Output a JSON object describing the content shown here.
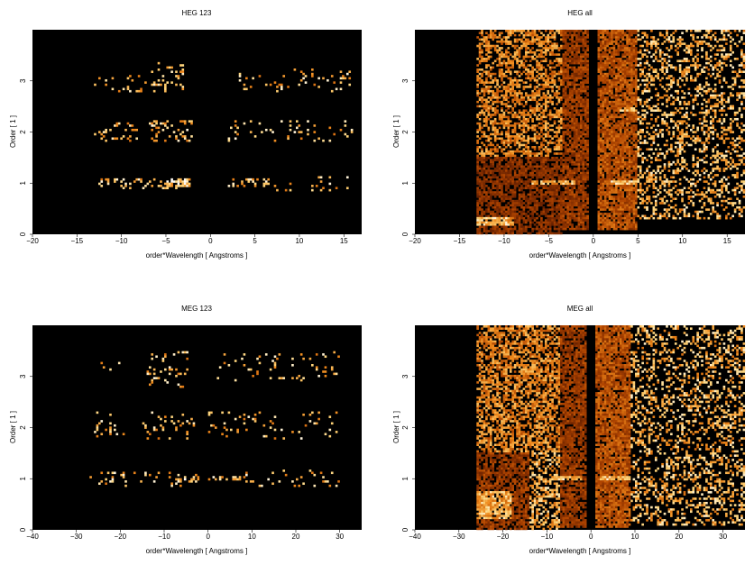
{
  "chart_data": [
    {
      "type": "heatmap",
      "title": "HEG 123",
      "xlabel": "order*Wavelength [ Angstroms ]",
      "ylabel": "Order [ 1 ]",
      "xlim": [
        -20,
        17
      ],
      "ylim": [
        0,
        4
      ],
      "xticks": [
        -20,
        -15,
        -10,
        -5,
        0,
        5,
        10,
        15
      ],
      "yticks": [
        0,
        1,
        2,
        3
      ],
      "background": "#000000",
      "colormap": [
        "#000000",
        "#5a1a00",
        "#b04400",
        "#f08a1c",
        "#ffd57a",
        "#ffffff"
      ],
      "density_regions": [
        {
          "x": [
            -12.5,
            -2.5
          ],
          "y": [
            0.9,
            1.1
          ],
          "density": 0.25,
          "level": 0.95
        },
        {
          "x": [
            -5,
            -2
          ],
          "y": [
            0.92,
            1.08
          ],
          "density": 0.6,
          "level": 1.0
        },
        {
          "x": [
            2,
            7
          ],
          "y": [
            0.92,
            1.08
          ],
          "density": 0.35,
          "level": 0.95
        },
        {
          "x": [
            7,
            16
          ],
          "y": [
            0.85,
            1.15
          ],
          "density": 0.08,
          "level": 0.95
        },
        {
          "x": [
            -13,
            -8
          ],
          "y": [
            1.8,
            2.2
          ],
          "density": 0.15,
          "level": 0.95
        },
        {
          "x": [
            -7,
            -2
          ],
          "y": [
            1.8,
            2.25
          ],
          "density": 0.22,
          "level": 0.95
        },
        {
          "x": [
            2,
            16
          ],
          "y": [
            1.8,
            2.25
          ],
          "density": 0.08,
          "level": 0.95
        },
        {
          "x": [
            -13,
            -7
          ],
          "y": [
            2.8,
            3.1
          ],
          "density": 0.12,
          "level": 0.95
        },
        {
          "x": [
            -7,
            -3
          ],
          "y": [
            2.8,
            3.4
          ],
          "density": 0.14,
          "level": 0.95
        },
        {
          "x": [
            3,
            16
          ],
          "y": [
            2.8,
            3.25
          ],
          "density": 0.08,
          "level": 0.95
        }
      ]
    },
    {
      "type": "heatmap",
      "title": "HEG all",
      "xlabel": "order*Wavelength [ Angstroms ]",
      "ylabel": "Order [ 1 ]",
      "xlim": [
        -20,
        17
      ],
      "ylim": [
        0,
        4
      ],
      "xticks": [
        -20,
        -15,
        -10,
        -5,
        0,
        5,
        10,
        15
      ],
      "yticks": [
        0,
        1,
        2,
        3
      ],
      "background": "#000000",
      "colormap": [
        "#000000",
        "#5a1a00",
        "#b04400",
        "#f08a1c",
        "#ffd57a",
        "#ffffff"
      ],
      "density_regions": [
        {
          "x": [
            -13,
            -3.5
          ],
          "y": [
            1.5,
            4
          ],
          "density": 0.55,
          "level": 0.75
        },
        {
          "x": [
            -13,
            -3.5
          ],
          "y": [
            0,
            1.5
          ],
          "density": 0.75,
          "level": 0.4
        },
        {
          "x": [
            -13,
            -9
          ],
          "y": [
            0.15,
            0.35
          ],
          "density": 0.9,
          "level": 0.95
        },
        {
          "x": [
            -7,
            -2
          ],
          "y": [
            0.95,
            1.05
          ],
          "density": 0.85,
          "level": 0.9
        },
        {
          "x": [
            -3.5,
            -0.5
          ],
          "y": [
            0.1,
            4
          ],
          "density": 0.8,
          "level": 0.45
        },
        {
          "x": [
            0.5,
            4.8
          ],
          "y": [
            0.1,
            4
          ],
          "density": 0.85,
          "level": 0.55
        },
        {
          "x": [
            2,
            5
          ],
          "y": [
            0.95,
            1.05
          ],
          "density": 0.9,
          "level": 0.95
        },
        {
          "x": [
            3,
            5
          ],
          "y": [
            2.4,
            2.5
          ],
          "density": 0.9,
          "level": 0.9
        },
        {
          "x": [
            5,
            17
          ],
          "y": [
            0.3,
            4
          ],
          "density": 0.32,
          "level": 0.92
        }
      ]
    },
    {
      "type": "heatmap",
      "title": "MEG 123",
      "xlabel": "order*Wavelength [ Angstroms ]",
      "ylabel": "Order [ 1 ]",
      "xlim": [
        -40,
        35
      ],
      "ylim": [
        0,
        4
      ],
      "xticks": [
        -40,
        -30,
        -20,
        -10,
        0,
        10,
        20,
        30
      ],
      "yticks": [
        0,
        1,
        2,
        3
      ],
      "background": "#000000",
      "colormap": [
        "#000000",
        "#5a1a00",
        "#b04400",
        "#f08a1c",
        "#ffd57a",
        "#ffffff"
      ],
      "density_regions": [
        {
          "x": [
            -27,
            -5
          ],
          "y": [
            0.85,
            1.15
          ],
          "density": 0.12,
          "level": 0.95
        },
        {
          "x": [
            -7,
            -2
          ],
          "y": [
            0.92,
            1.1
          ],
          "density": 0.55,
          "level": 1.0
        },
        {
          "x": [
            0,
            8
          ],
          "y": [
            0.95,
            1.05
          ],
          "density": 0.45,
          "level": 0.95
        },
        {
          "x": [
            8,
            30
          ],
          "y": [
            0.85,
            1.2
          ],
          "density": 0.06,
          "level": 0.95
        },
        {
          "x": [
            -26,
            -18
          ],
          "y": [
            1.8,
            2.3
          ],
          "density": 0.08,
          "level": 0.95
        },
        {
          "x": [
            -15,
            -3
          ],
          "y": [
            1.7,
            2.3
          ],
          "density": 0.14,
          "level": 0.95
        },
        {
          "x": [
            0,
            30
          ],
          "y": [
            1.75,
            2.3
          ],
          "density": 0.07,
          "level": 0.95
        },
        {
          "x": [
            -25,
            -20
          ],
          "y": [
            3.1,
            3.3
          ],
          "density": 0.12,
          "level": 0.95
        },
        {
          "x": [
            -14,
            -4
          ],
          "y": [
            2.8,
            3.5
          ],
          "density": 0.12,
          "level": 0.95
        },
        {
          "x": [
            2,
            30
          ],
          "y": [
            2.9,
            3.5
          ],
          "density": 0.07,
          "level": 0.95
        }
      ]
    },
    {
      "type": "heatmap",
      "title": "MEG all",
      "xlabel": "order*Wavelength [ Angstroms ]",
      "ylabel": "Order [ 1 ]",
      "xlim": [
        -40,
        35
      ],
      "ylim": [
        0,
        4
      ],
      "xticks": [
        -40,
        -30,
        -20,
        -10,
        0,
        10,
        20,
        30
      ],
      "yticks": [
        0,
        1,
        2,
        3
      ],
      "background": "#000000",
      "colormap": [
        "#000000",
        "#5a1a00",
        "#b04400",
        "#f08a1c",
        "#ffd57a",
        "#ffffff"
      ],
      "density_regions": [
        {
          "x": [
            -26,
            -7
          ],
          "y": [
            1.5,
            4
          ],
          "density": 0.6,
          "level": 0.75
        },
        {
          "x": [
            -26,
            -14
          ],
          "y": [
            0,
            1.5
          ],
          "density": 0.75,
          "level": 0.45
        },
        {
          "x": [
            -14,
            -7
          ],
          "y": [
            0,
            1.5
          ],
          "density": 0.45,
          "level": 0.9
        },
        {
          "x": [
            -26,
            -18
          ],
          "y": [
            0.2,
            0.75
          ],
          "density": 0.85,
          "level": 0.9
        },
        {
          "x": [
            -9,
            -2
          ],
          "y": [
            0.95,
            1.05
          ],
          "density": 0.85,
          "level": 0.95
        },
        {
          "x": [
            -7,
            -1
          ],
          "y": [
            0.05,
            4
          ],
          "density": 0.8,
          "level": 0.45
        },
        {
          "x": [
            1,
            9
          ],
          "y": [
            0.05,
            4
          ],
          "density": 0.85,
          "level": 0.55
        },
        {
          "x": [
            2,
            9
          ],
          "y": [
            0.95,
            1.05
          ],
          "density": 0.9,
          "level": 0.95
        },
        {
          "x": [
            9,
            35
          ],
          "y": [
            0.1,
            4
          ],
          "density": 0.3,
          "level": 0.92
        }
      ]
    }
  ]
}
